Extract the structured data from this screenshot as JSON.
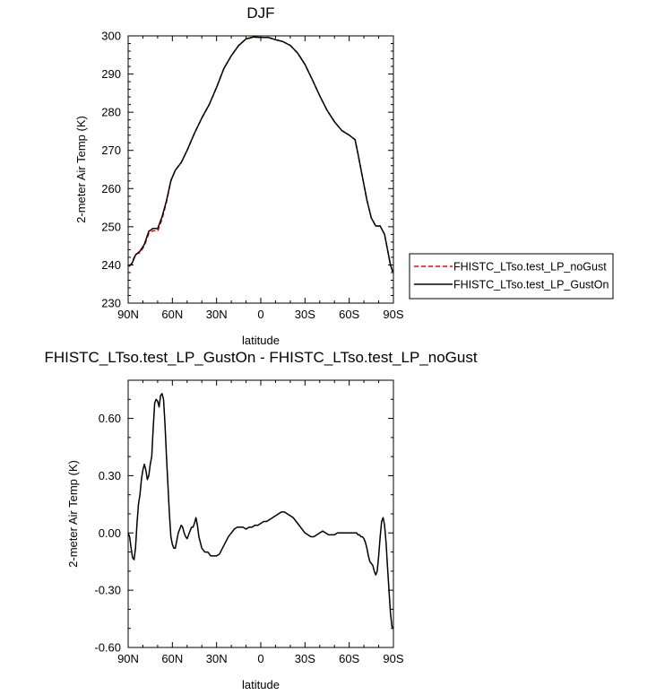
{
  "chart_data": [
    {
      "type": "line",
      "title": "DJF",
      "xlabel": "latitude",
      "ylabel": "2-meter Air Temp (K)",
      "xlim": [
        90,
        -90
      ],
      "ylim": [
        230,
        300
      ],
      "xticks": [
        {
          "value": 90,
          "label": "90N"
        },
        {
          "value": 60,
          "label": "60N"
        },
        {
          "value": 30,
          "label": "30N"
        },
        {
          "value": 0,
          "label": "0"
        },
        {
          "value": -30,
          "label": "30S"
        },
        {
          "value": -60,
          "label": "60S"
        },
        {
          "value": -90,
          "label": "90S"
        }
      ],
      "yticks": [
        {
          "value": 300,
          "label": "300"
        },
        {
          "value": 290,
          "label": "290"
        },
        {
          "value": 280,
          "label": "280"
        },
        {
          "value": 270,
          "label": "270"
        },
        {
          "value": 260,
          "label": "260"
        },
        {
          "value": 250,
          "label": "250"
        },
        {
          "value": 240,
          "label": "240"
        },
        {
          "value": 230,
          "label": "230"
        }
      ],
      "legend_position": "right",
      "series": [
        {
          "name": "FHISTC_LTso.test_LP_noGust",
          "color": "#ff0000",
          "dash": "dashed",
          "x": [
            89.5,
            87.5,
            85,
            82,
            79,
            76,
            73,
            70,
            67,
            64,
            61,
            58,
            54,
            50,
            45,
            40,
            35,
            30,
            25,
            20,
            15,
            10,
            5,
            0,
            -5,
            -10,
            -15,
            -20,
            -25,
            -30,
            -35,
            -40,
            -45,
            -50,
            -55,
            -60,
            -64,
            -66,
            -69,
            -72,
            -75,
            -78,
            -81,
            -84,
            -86,
            -88,
            -89.5
          ],
          "values": [
            239.6,
            240.5,
            242.8,
            243.2,
            245.0,
            248.2,
            249.0,
            248.8,
            252.0,
            256.5,
            262.0,
            264.8,
            266.8,
            270.0,
            274.5,
            278.5,
            282.0,
            286.5,
            291.5,
            294.8,
            297.5,
            299.2,
            299.7,
            299.6,
            299.6,
            299.0,
            298.5,
            297.5,
            295.5,
            292.5,
            288.5,
            284.3,
            280.5,
            277.5,
            275.2,
            274.0,
            272.8,
            269.0,
            263.0,
            257.0,
            252.3,
            250.2,
            250.2,
            248.0,
            244.0,
            240.0,
            238.3
          ]
        },
        {
          "name": "FHISTC_LTso.test_LP_GustOn",
          "color": "#000000",
          "dash": "solid",
          "x": [
            89.5,
            87.5,
            85,
            82,
            79,
            76,
            73,
            70,
            67,
            64,
            61,
            58,
            54,
            50,
            45,
            40,
            35,
            30,
            25,
            20,
            15,
            10,
            5,
            0,
            -5,
            -10,
            -15,
            -20,
            -25,
            -30,
            -35,
            -40,
            -45,
            -50,
            -55,
            -60,
            -64,
            -66,
            -69,
            -72,
            -75,
            -78,
            -81,
            -84,
            -86,
            -88,
            -89.5
          ],
          "values": [
            239.6,
            240.3,
            242.6,
            243.6,
            245.4,
            248.8,
            249.6,
            249.5,
            252.6,
            256.8,
            262.1,
            264.8,
            266.8,
            270.0,
            274.5,
            278.5,
            282.0,
            286.5,
            291.5,
            294.8,
            297.5,
            299.2,
            299.7,
            299.6,
            299.6,
            299.0,
            298.5,
            297.5,
            295.5,
            292.5,
            288.5,
            284.3,
            280.5,
            277.5,
            275.2,
            274.0,
            272.8,
            269.0,
            263.0,
            257.0,
            252.3,
            250.2,
            250.2,
            248.0,
            244.0,
            240.0,
            238.2
          ]
        }
      ]
    },
    {
      "type": "line",
      "title": "FHISTC_LTso.test_LP_GustOn - FHISTC_LTso.test_LP_noGust",
      "xlabel": "latitude",
      "ylabel": "2-meter Air Temp (K)",
      "xlim": [
        90,
        -90
      ],
      "ylim": [
        -0.6,
        0.8
      ],
      "xticks": [
        {
          "value": 90,
          "label": "90N"
        },
        {
          "value": 60,
          "label": "60N"
        },
        {
          "value": 30,
          "label": "30N"
        },
        {
          "value": 0,
          "label": "0"
        },
        {
          "value": -30,
          "label": "30S"
        },
        {
          "value": -60,
          "label": "60S"
        },
        {
          "value": -90,
          "label": "90S"
        }
      ],
      "yticks": [
        {
          "value": 0.6,
          "label": "0.60"
        },
        {
          "value": 0.3,
          "label": "0.30"
        },
        {
          "value": 0.0,
          "label": "0.00"
        },
        {
          "value": -0.3,
          "label": "-0.30"
        },
        {
          "value": -0.6,
          "label": "-0.60"
        }
      ],
      "series": [
        {
          "color": "#000000",
          "dash": "solid",
          "x": [
            90,
            89,
            88,
            87,
            86,
            85,
            84,
            83,
            82,
            81,
            80,
            79,
            78,
            77,
            76,
            75,
            74,
            73,
            72,
            71,
            70,
            69,
            68,
            67,
            66,
            65,
            64,
            63,
            62,
            61,
            60,
            59,
            58,
            57,
            56,
            55,
            54,
            53,
            52,
            51,
            50,
            49,
            48,
            47,
            46,
            45,
            44,
            43,
            42,
            41,
            40,
            38,
            36,
            34,
            32,
            30,
            28,
            26,
            24,
            22,
            20,
            18,
            16,
            14,
            12,
            10,
            8,
            6,
            4,
            2,
            0,
            -2,
            -4,
            -6,
            -8,
            -10,
            -12,
            -14,
            -16,
            -18,
            -20,
            -22,
            -24,
            -26,
            -28,
            -30,
            -32,
            -34,
            -36,
            -38,
            -40,
            -42,
            -44,
            -46,
            -48,
            -50,
            -52,
            -54,
            -56,
            -58,
            -60,
            -62,
            -64,
            -65,
            -66,
            -67,
            -68,
            -69,
            -70,
            -71,
            -72,
            -73,
            -74,
            -75,
            -76,
            -77,
            -78,
            -79,
            -80,
            -81,
            -82,
            -83,
            -84,
            -85,
            -86,
            -87,
            -88,
            -89,
            -90
          ],
          "values": [
            0.0,
            -0.02,
            -0.08,
            -0.13,
            -0.14,
            -0.08,
            0.05,
            0.15,
            0.2,
            0.28,
            0.33,
            0.36,
            0.33,
            0.28,
            0.3,
            0.36,
            0.4,
            0.55,
            0.68,
            0.7,
            0.69,
            0.66,
            0.72,
            0.73,
            0.7,
            0.57,
            0.4,
            0.25,
            0.1,
            -0.02,
            -0.06,
            -0.08,
            -0.08,
            -0.04,
            0.0,
            0.02,
            0.04,
            0.03,
            0.0,
            -0.02,
            -0.03,
            -0.01,
            0.01,
            0.03,
            0.03,
            0.05,
            0.08,
            0.04,
            -0.02,
            -0.05,
            -0.08,
            -0.1,
            -0.1,
            -0.12,
            -0.12,
            -0.12,
            -0.11,
            -0.08,
            -0.05,
            -0.02,
            0.0,
            0.02,
            0.03,
            0.03,
            0.03,
            0.02,
            0.03,
            0.03,
            0.04,
            0.04,
            0.05,
            0.06,
            0.06,
            0.07,
            0.08,
            0.09,
            0.1,
            0.11,
            0.11,
            0.1,
            0.09,
            0.08,
            0.06,
            0.04,
            0.02,
            0.0,
            -0.01,
            -0.02,
            -0.02,
            -0.01,
            0.0,
            0.01,
            0.0,
            -0.01,
            -0.01,
            -0.01,
            0.0,
            0.0,
            0.0,
            0.0,
            0.0,
            0.0,
            0.0,
            0.0,
            -0.01,
            -0.01,
            -0.02,
            -0.02,
            -0.03,
            -0.05,
            -0.08,
            -0.12,
            -0.15,
            -0.16,
            -0.17,
            -0.2,
            -0.22,
            -0.2,
            -0.12,
            -0.02,
            0.06,
            0.08,
            0.04,
            -0.05,
            -0.18,
            -0.3,
            -0.42,
            -0.49,
            -0.5
          ]
        }
      ]
    }
  ]
}
